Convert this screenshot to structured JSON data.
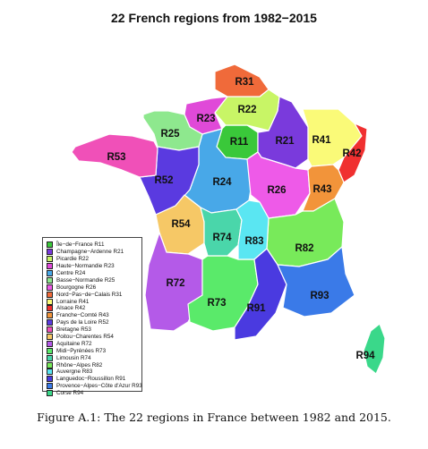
{
  "title": "22 French regions from 1982−2015",
  "caption": "Figure A.1: The 22 regions in France between 1982 and 2015.",
  "regions": [
    {
      "code": "R11",
      "color": "#3ac83a"
    },
    {
      "code": "R21",
      "color": "#7a3adc"
    },
    {
      "code": "R22",
      "color": "#c8f566"
    },
    {
      "code": "R23",
      "color": "#e04ad8"
    },
    {
      "code": "R24",
      "color": "#48a8e8"
    },
    {
      "code": "R25",
      "color": "#8ee88e"
    },
    {
      "code": "R26",
      "color": "#ee5ae8"
    },
    {
      "code": "R31",
      "color": "#f06a3a"
    },
    {
      "code": "R41",
      "color": "#fafa78"
    },
    {
      "code": "R42",
      "color": "#f03030"
    },
    {
      "code": "R43",
      "color": "#f2943a"
    },
    {
      "code": "R52",
      "color": "#5a3ae0"
    },
    {
      "code": "R53",
      "color": "#f050b8"
    },
    {
      "code": "R54",
      "color": "#f6c866"
    },
    {
      "code": "R72",
      "color": "#b45ae8"
    },
    {
      "code": "R73",
      "color": "#5aea6a"
    },
    {
      "code": "R74",
      "color": "#4ad6aa"
    },
    {
      "code": "R82",
      "color": "#78ea5a"
    },
    {
      "code": "R83",
      "color": "#5ae6f2"
    },
    {
      "code": "R91",
      "color": "#4a3ae0"
    },
    {
      "code": "R93",
      "color": "#3a7ae8"
    },
    {
      "code": "R94",
      "color": "#3ad88a"
    }
  ],
  "legend": [
    {
      "label": "Île−de−France R11",
      "color": "#3ac83a"
    },
    {
      "label": "Champagne−Ardenne R21",
      "color": "#7a3adc"
    },
    {
      "label": "Picardie R22",
      "color": "#c8f566"
    },
    {
      "label": "Haute−Normandie R23",
      "color": "#e04ad8"
    },
    {
      "label": "Centre R24",
      "color": "#48a8e8"
    },
    {
      "label": "Basse−Normandie R25",
      "color": "#8ee88e"
    },
    {
      "label": "Bourgogne R26",
      "color": "#ee5ae8"
    },
    {
      "label": "Nord−Pas−de−Calais R31",
      "color": "#f06a3a"
    },
    {
      "label": "Lorraine R41",
      "color": "#fafa78"
    },
    {
      "label": "Alsace R42",
      "color": "#f03030"
    },
    {
      "label": "Franche−Comté R43",
      "color": "#f2943a"
    },
    {
      "label": "Pays de la Loire R52",
      "color": "#5a3ae0"
    },
    {
      "label": "Bretagne R53",
      "color": "#f050b8"
    },
    {
      "label": "Poitou−Charentes R54",
      "color": "#f6c866"
    },
    {
      "label": "Aquitaine R72",
      "color": "#b45ae8"
    },
    {
      "label": "Midi−Pyrénées R73",
      "color": "#5aea6a"
    },
    {
      "label": "Limousin R74",
      "color": "#4ad6aa"
    },
    {
      "label": "Rhône−Alpes R82",
      "color": "#78ea5a"
    },
    {
      "label": "Auvergne R83",
      "color": "#5ae6f2"
    },
    {
      "label": "Languedoc−Roussillon R91",
      "color": "#4a3ae0"
    },
    {
      "label": "Provence−Alpes−Côte d'Azur R93",
      "color": "#3a7ae8"
    },
    {
      "label": "Corse R94",
      "color": "#3ad88a"
    }
  ]
}
